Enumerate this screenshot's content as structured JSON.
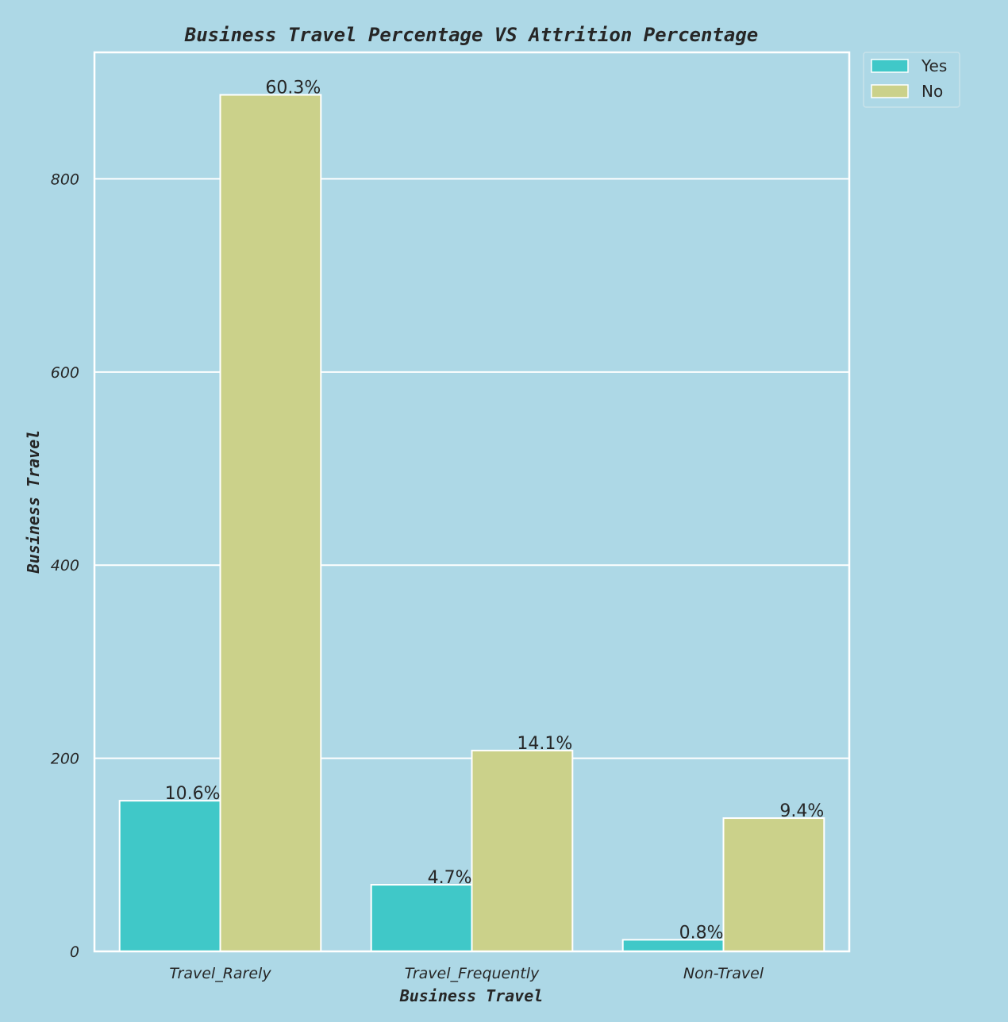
{
  "colors": {
    "background": "#add8e6",
    "grid": "#ffffff",
    "text": "#262626",
    "yes": "#40c8c8",
    "no": "#cbd18a"
  },
  "chart_data": {
    "type": "bar",
    "title": "Business Travel Percentage VS Attrition Percentage",
    "xlabel": "Business Travel",
    "ylabel": "Business Travel",
    "categories": [
      "Travel_Rarely",
      "Travel_Frequently",
      "Non-Travel"
    ],
    "series": [
      {
        "name": "Yes",
        "color": "#40c8c8",
        "values": [
          156,
          69,
          12
        ],
        "labels": [
          "10.6%",
          "4.7%",
          "0.8%"
        ]
      },
      {
        "name": "No",
        "color": "#cbd18a",
        "values": [
          887,
          208,
          138
        ],
        "labels": [
          "60.3%",
          "14.1%",
          "9.4%"
        ]
      }
    ],
    "yticks": [
      0,
      200,
      400,
      600,
      800
    ],
    "ylim": [
      0,
      931
    ],
    "grid": true,
    "legend_position": "upper right, outside plot"
  }
}
